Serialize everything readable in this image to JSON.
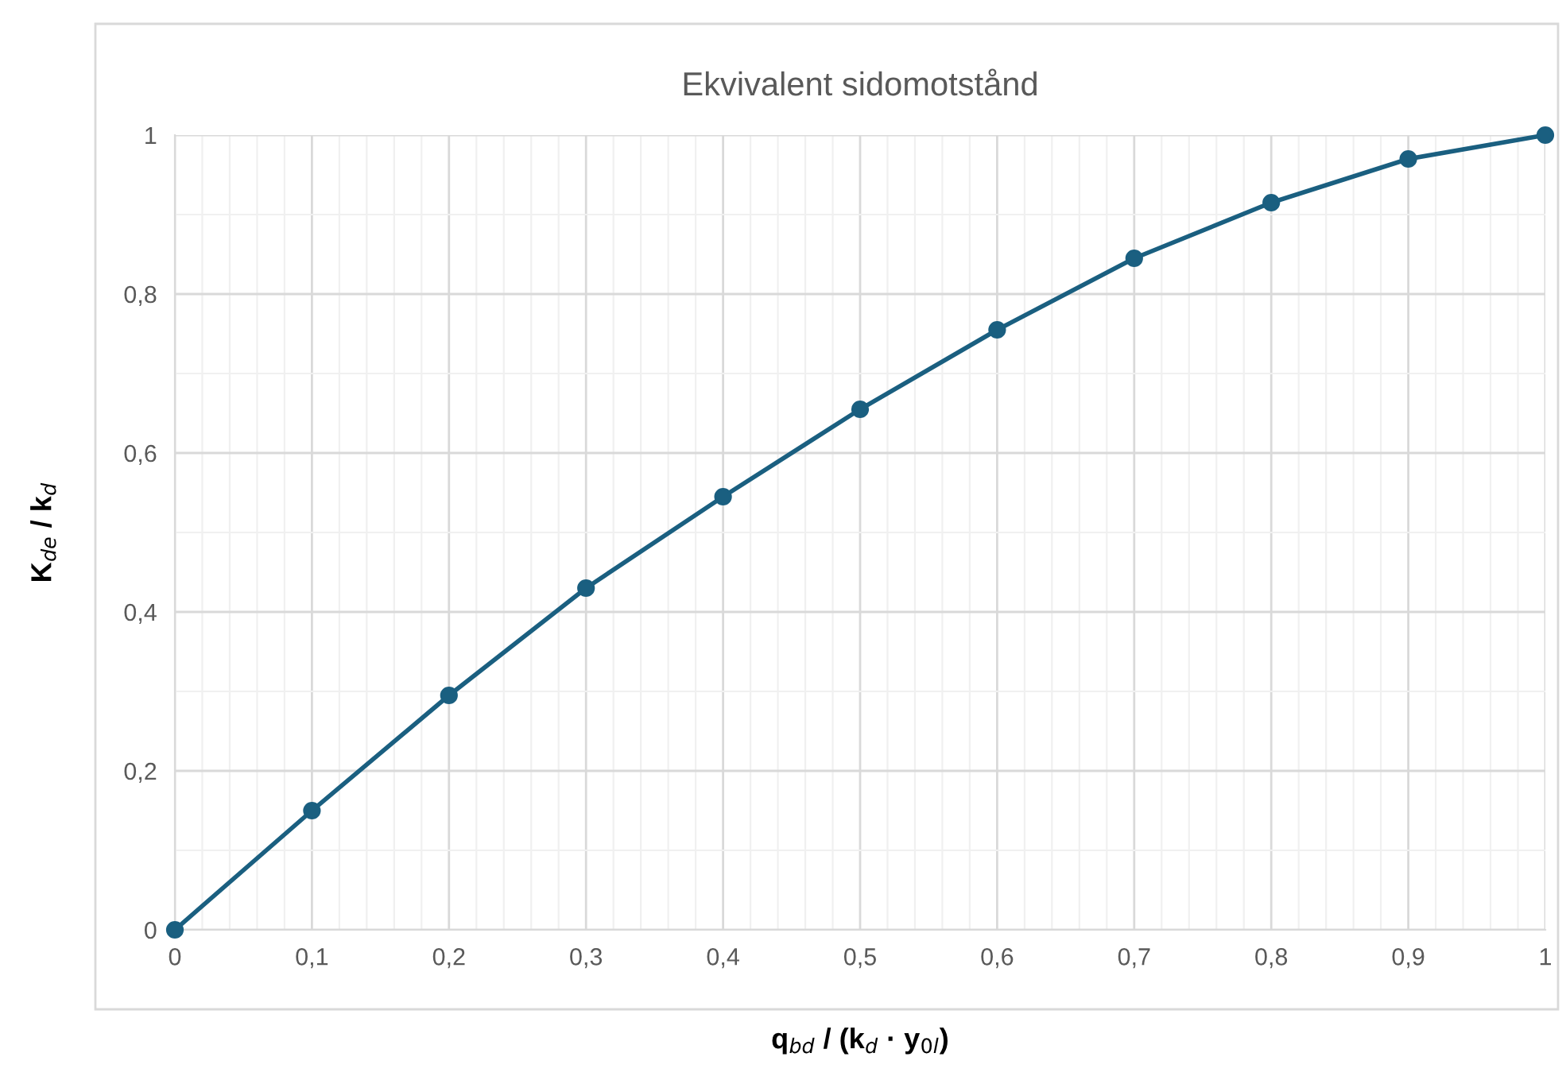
{
  "chart_data": {
    "type": "line",
    "title": "Ekvivalent sidomotstånd",
    "xlabel": "q$_{bd}$ / (k$_{d}$ · y$_{0l}$)",
    "ylabel": "K$_{de}$ / k$_{d}$",
    "x": [
      0,
      0.1,
      0.2,
      0.3,
      0.4,
      0.5,
      0.6,
      0.7,
      0.8,
      0.9,
      1
    ],
    "series": [
      {
        "color": "#1a5f80",
        "values": [
          0,
          0.15,
          0.295,
          0.43,
          0.545,
          0.655,
          0.755,
          0.845,
          0.915,
          0.97,
          1
        ]
      }
    ],
    "xlim": [
      0,
      1
    ],
    "ylim": [
      0,
      1
    ],
    "xticks": [
      0,
      {
        "value": 0.1,
        "label": "0,1"
      },
      {
        "value": 0.2,
        "label": "0,2"
      },
      {
        "value": 0.3,
        "label": "0,3"
      },
      {
        "value": 0.4,
        "label": "0,4"
      },
      {
        "value": 0.5,
        "label": "0,5"
      },
      {
        "value": 0.6,
        "label": "0,6"
      },
      {
        "value": 0.7,
        "label": "0,7"
      },
      {
        "value": 0.8,
        "label": "0,8"
      },
      {
        "value": 0.9,
        "label": "0,9"
      },
      1
    ],
    "yticks": [
      0,
      {
        "value": 0.2,
        "label": "0,2"
      },
      {
        "value": 0.4,
        "label": "0,4"
      },
      {
        "value": 0.6,
        "label": "0,6"
      },
      {
        "value": 0.8,
        "label": "0,8"
      },
      1
    ],
    "grid": true,
    "marker": "circle",
    "line_style": "solid"
  }
}
